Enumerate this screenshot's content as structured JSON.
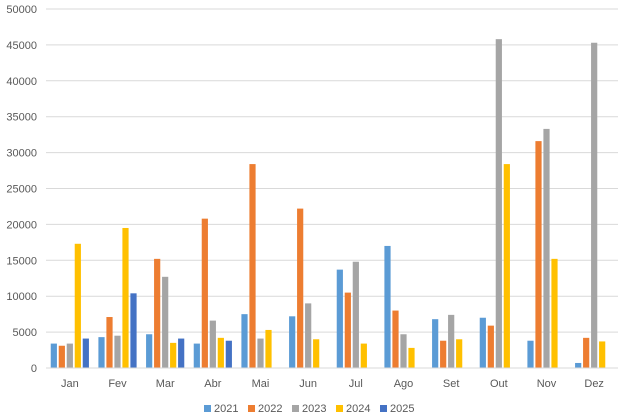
{
  "chart_data": {
    "type": "bar",
    "categories": [
      "Jan",
      "Fev",
      "Mar",
      "Abr",
      "Mai",
      "Jun",
      "Jul",
      "Ago",
      "Set",
      "Out",
      "Nov",
      "Dez"
    ],
    "series": [
      {
        "name": "2021",
        "color": "#5B9BD5",
        "values": [
          3400,
          4300,
          4700,
          3400,
          7500,
          7200,
          13700,
          17000,
          6800,
          7000,
          3800,
          700
        ]
      },
      {
        "name": "2022",
        "color": "#ED7D31",
        "values": [
          3100,
          7100,
          15200,
          20800,
          28400,
          22200,
          10500,
          8000,
          3800,
          5900,
          31600,
          4200
        ]
      },
      {
        "name": "2023",
        "color": "#A5A5A5",
        "values": [
          3400,
          4500,
          12700,
          6600,
          4100,
          9000,
          14800,
          4700,
          7400,
          45800,
          33300,
          45300
        ]
      },
      {
        "name": "2024",
        "color": "#FFC000",
        "values": [
          17300,
          19500,
          3500,
          4200,
          5300,
          4000,
          3400,
          2800,
          4000,
          28400,
          15200,
          3700
        ]
      },
      {
        "name": "2025",
        "color": "#4472C4",
        "values": [
          4100,
          10400,
          4100,
          3800,
          null,
          null,
          null,
          null,
          null,
          null,
          null,
          null
        ]
      }
    ],
    "yticks": [
      "0",
      "5000",
      "10000",
      "15000",
      "20000",
      "25000",
      "30000",
      "35000",
      "40000",
      "45000",
      "50000"
    ],
    "ylim": [
      0,
      50000
    ],
    "grid": true,
    "legend": "bottom",
    "title": "",
    "xlabel": "",
    "ylabel": ""
  }
}
